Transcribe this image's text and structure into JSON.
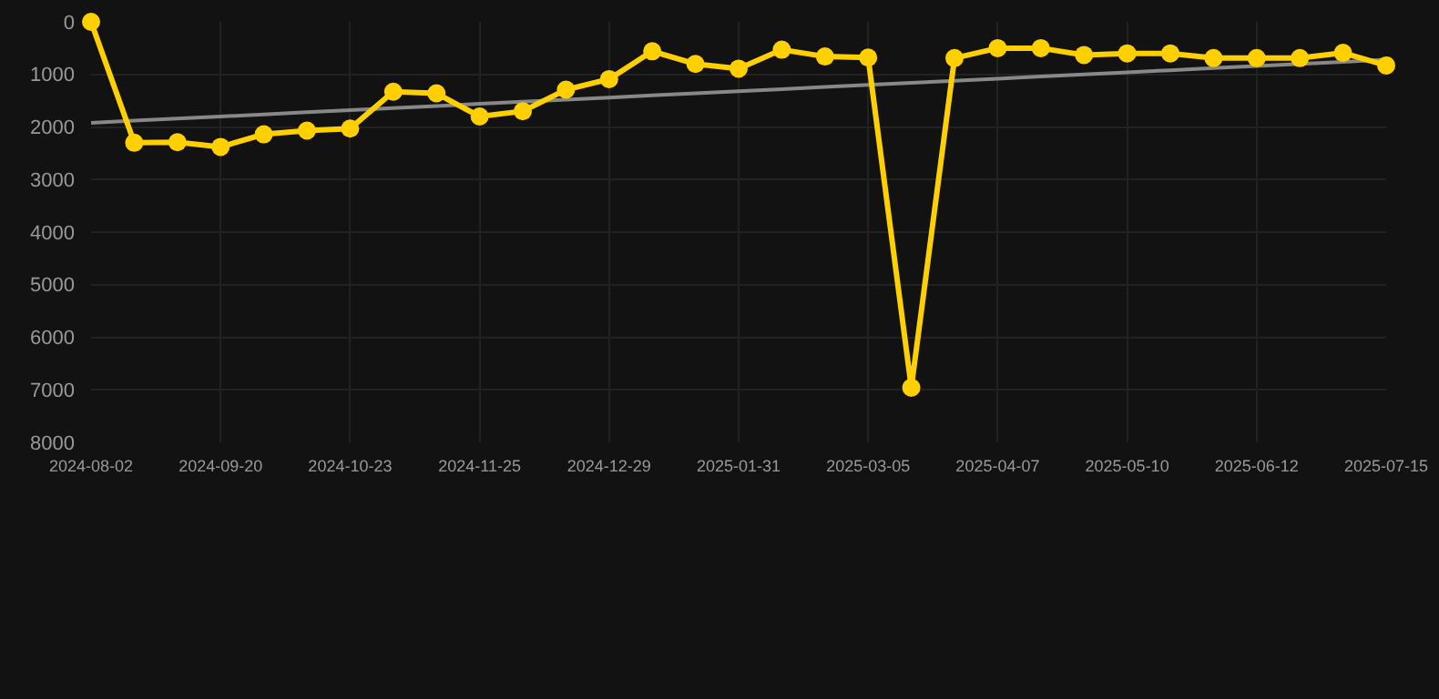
{
  "chart_data": {
    "type": "line",
    "categories": [
      "2024-08-02",
      null,
      null,
      "2024-09-20",
      null,
      null,
      "2024-10-23",
      null,
      null,
      "2024-11-25",
      null,
      null,
      "2024-12-29",
      null,
      null,
      "2025-01-31",
      null,
      null,
      "2025-03-05",
      null,
      null,
      "2025-04-07",
      null,
      null,
      "2025-05-10",
      null,
      null,
      "2025-06-12",
      null,
      null,
      "2025-07-15"
    ],
    "series": [
      {
        "color": "#ffd000",
        "marker": "circle",
        "values": [
          0,
          2300,
          2290,
          2380,
          2140,
          2070,
          2030,
          1330,
          1360,
          1800,
          1700,
          1290,
          1090,
          560,
          800,
          890,
          530,
          660,
          680,
          6960,
          690,
          500,
          500,
          630,
          600,
          600,
          690,
          690,
          690,
          590,
          830
        ]
      },
      {
        "color": "#888888",
        "marker": "none",
        "values": [
          1920,
          1880,
          1840,
          1800,
          1760,
          1720,
          1680,
          1640,
          1600,
          1560,
          1520,
          1480,
          1440,
          1400,
          1360,
          1320,
          1280,
          1240,
          1200,
          1160,
          1120,
          1080,
          1040,
          1000,
          960,
          920,
          880,
          840,
          800,
          760,
          720
        ]
      }
    ],
    "ylim": [
      8000,
      0
    ],
    "yticks": [
      0,
      1000,
      2000,
      3000,
      4000,
      5000,
      6000,
      7000,
      8000
    ],
    "grid": true
  }
}
